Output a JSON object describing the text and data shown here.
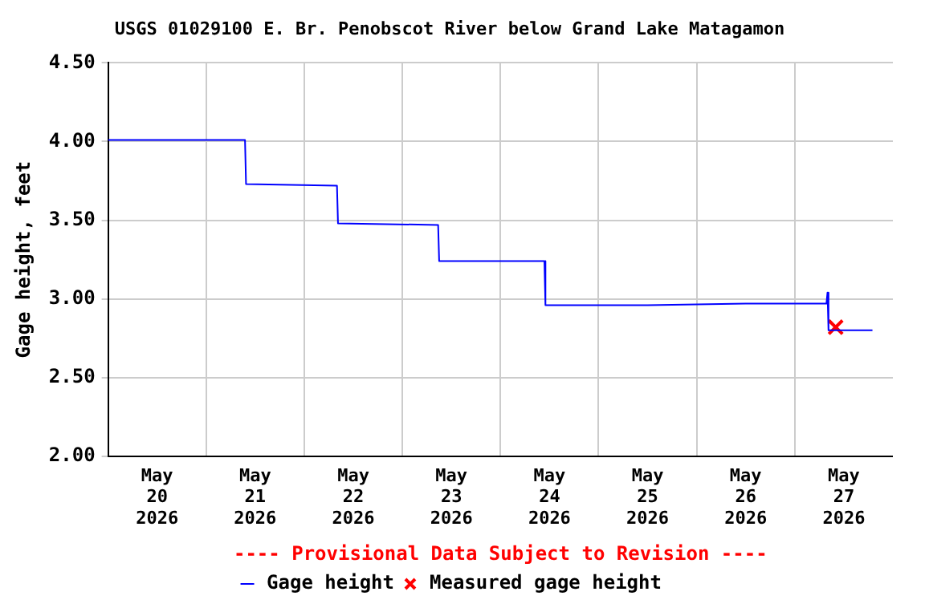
{
  "chart_data": {
    "type": "line",
    "title": "USGS 01029100 E. Br. Penobscot River below Grand Lake Matagamon",
    "ylabel": "Gage height, feet",
    "annotations": [
      "---- Provisional Data Subject to Revision ----"
    ],
    "xlim": [
      "2026-05-20T00:00",
      "2026-05-28T00:00"
    ],
    "xticks": [
      {
        "value": "2026-05-20T12:00",
        "label": "May\n20\n2026"
      },
      {
        "value": "2026-05-21T00:00",
        "label": null
      },
      {
        "value": "2026-05-21T12:00",
        "label": "May\n21\n2026"
      },
      {
        "value": "2026-05-22T00:00",
        "label": null
      },
      {
        "value": "2026-05-22T12:00",
        "label": "May\n22\n2026"
      },
      {
        "value": "2026-05-23T00:00",
        "label": null
      },
      {
        "value": "2026-05-23T12:00",
        "label": "May\n23\n2026"
      },
      {
        "value": "2026-05-24T00:00",
        "label": null
      },
      {
        "value": "2026-05-24T12:00",
        "label": "May\n24\n2026"
      },
      {
        "value": "2026-05-25T00:00",
        "label": null
      },
      {
        "value": "2026-05-25T12:00",
        "label": "May\n25\n2026"
      },
      {
        "value": "2026-05-26T00:00",
        "label": null
      },
      {
        "value": "2026-05-26T12:00",
        "label": "May\n26\n2026"
      },
      {
        "value": "2026-05-27T00:00",
        "label": null
      },
      {
        "value": "2026-05-27T12:00",
        "label": "May\n27\n2026"
      }
    ],
    "ylim": [
      2.0,
      4.5
    ],
    "yticks": [
      {
        "value": 2.0,
        "label": "2.00"
      },
      {
        "value": 2.5,
        "label": "2.50"
      },
      {
        "value": 3.0,
        "label": "3.00"
      },
      {
        "value": 3.5,
        "label": "3.50"
      },
      {
        "value": 4.0,
        "label": "4.00"
      },
      {
        "value": 4.5,
        "label": "4.50"
      }
    ],
    "grid": true,
    "legend": "bottom",
    "series": [
      {
        "name": "Gage height",
        "color": "#0000ff",
        "marker": "none",
        "x": [
          "2026-05-20T00:00",
          "2026-05-21T09:30",
          "2026-05-21T09:45",
          "2026-05-22T08:00",
          "2026-05-22T08:15",
          "2026-05-23T08:45",
          "2026-05-23T09:00",
          "2026-05-24T10:45",
          "2026-05-24T11:00",
          "2026-05-25T12:00",
          "2026-05-26T12:00",
          "2026-05-27T07:45",
          "2026-05-27T08:00",
          "2026-05-27T08:15",
          "2026-05-27T19:00"
        ],
        "values": [
          4.01,
          4.01,
          3.73,
          3.72,
          3.48,
          3.47,
          3.24,
          3.24,
          2.96,
          2.96,
          2.97,
          2.97,
          3.04,
          2.8,
          2.8
        ]
      },
      {
        "name": "Measured gage height",
        "type": "scatter",
        "color": "#ff0000",
        "marker": "cross",
        "x": [
          "2026-05-27T10:00"
        ],
        "values": [
          2.82
        ]
      }
    ]
  }
}
